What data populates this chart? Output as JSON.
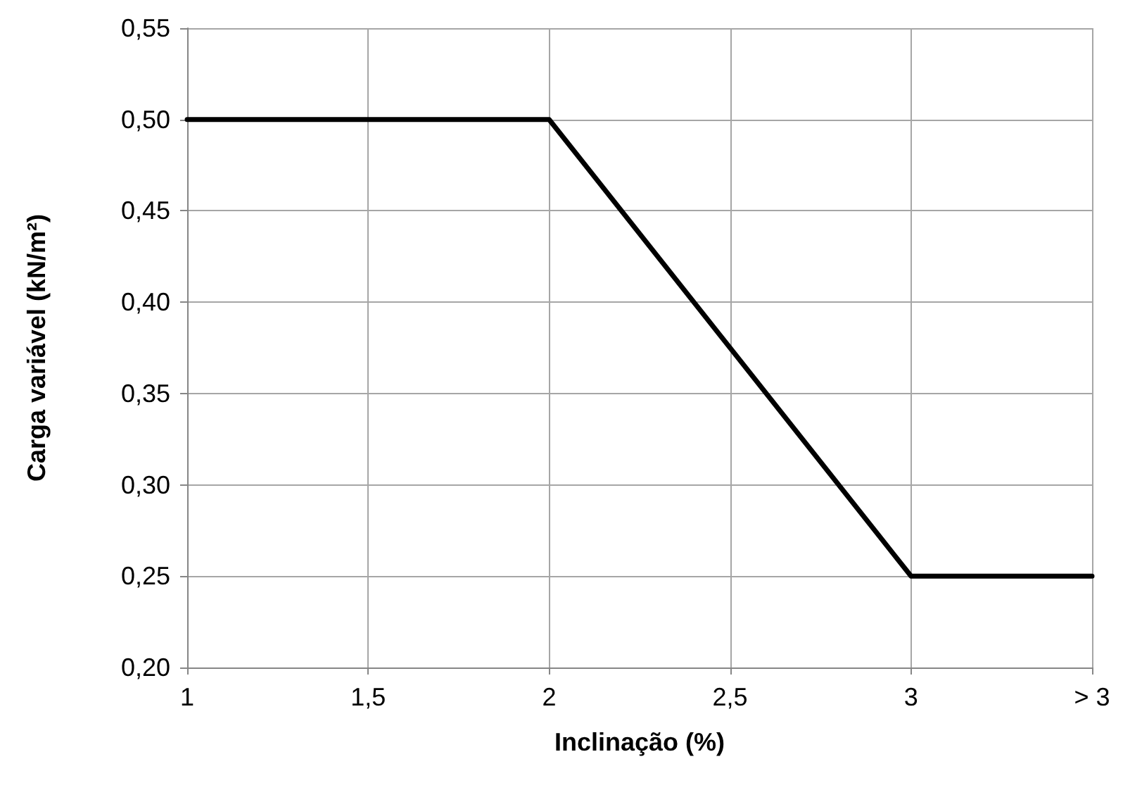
{
  "chart_data": {
    "type": "line",
    "xlabel": "Inclinação (%)",
    "ylabel": "Carga variável (kN/m²)",
    "x": [
      1,
      2,
      3,
      3.5
    ],
    "series": [
      {
        "color": "#000000",
        "values": [
          0.5,
          0.5,
          0.25,
          0.25
        ]
      }
    ],
    "xlim": [
      1,
      3.5
    ],
    "xticks": [
      1,
      {
        "value": 1.5,
        "label": "1,5"
      },
      2,
      {
        "value": 2.5,
        "label": "2,5"
      },
      3,
      {
        "value": 3.5,
        "label": "> 3"
      }
    ],
    "ylim": [
      0.2,
      0.55
    ],
    "yticks": [
      {
        "value": 0.2,
        "label": "0,20"
      },
      {
        "value": 0.25,
        "label": "0,25"
      },
      {
        "value": 0.3,
        "label": "0,30"
      },
      {
        "value": 0.35,
        "label": "0,35"
      },
      {
        "value": 0.4,
        "label": "0,40"
      },
      {
        "value": 0.45,
        "label": "0,45"
      },
      {
        "value": 0.5,
        "label": "0,50"
      },
      {
        "value": 0.55,
        "label": "0,55"
      }
    ],
    "grid": true,
    "marker": "none",
    "line_style": "solid"
  }
}
